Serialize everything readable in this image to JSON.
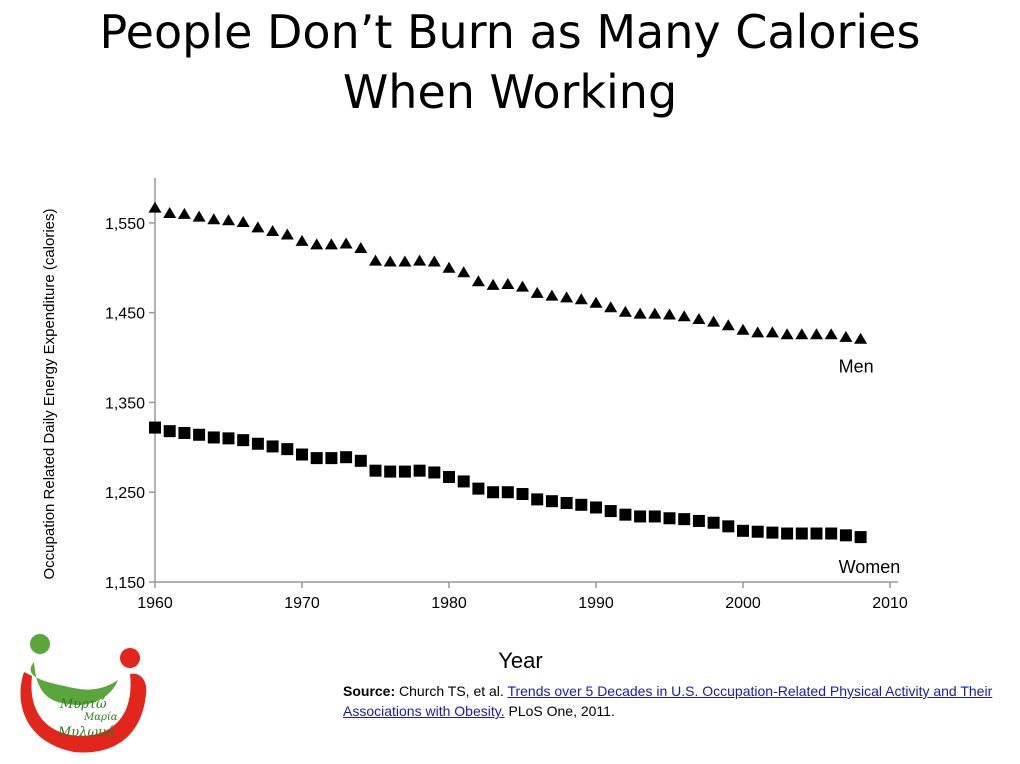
{
  "slide": {
    "title_line1": "People Don’t Burn as Many Calories",
    "title_line2": "When Working"
  },
  "source": {
    "label": "Source:",
    "authors": "Church TS, et al.",
    "link_text": "Trends over 5 Decades in U.S. Occupation-Related Physical Activity and Their Associations with Obesity.",
    "suffix": "PLoS One, 2011."
  },
  "logo": {
    "line1": "Μυρτώ",
    "line2": "Μαρία",
    "line3": "Μυλωνά",
    "colors": {
      "green": "#5aa63a",
      "red": "#e2261c"
    }
  },
  "chart_data": {
    "type": "scatter",
    "title": "",
    "xlabel": "Year",
    "ylabel": "Occupation Related Daily Energy Expenditure (calories)",
    "xlim": [
      1960,
      2010
    ],
    "ylim": [
      1150,
      1600
    ],
    "xticks": [
      1960,
      1970,
      1980,
      1990,
      2000,
      2010
    ],
    "yticks": [
      1150,
      1250,
      1350,
      1450,
      1550
    ],
    "xtick_labels": [
      "1960",
      "1970",
      "1980",
      "1990",
      "2000",
      "2010"
    ],
    "ytick_labels": [
      "1,150",
      "1,250",
      "1,350",
      "1,450",
      "1,550"
    ],
    "grid": false,
    "x": [
      1960,
      1961,
      1962,
      1963,
      1964,
      1965,
      1966,
      1967,
      1968,
      1969,
      1970,
      1971,
      1972,
      1973,
      1974,
      1975,
      1976,
      1977,
      1978,
      1979,
      1980,
      1981,
      1982,
      1983,
      1984,
      1985,
      1986,
      1987,
      1988,
      1989,
      1990,
      1991,
      1992,
      1993,
      1994,
      1995,
      1996,
      1997,
      1998,
      1999,
      2000,
      2001,
      2002,
      2003,
      2004,
      2005,
      2006,
      2007,
      2008
    ],
    "series": [
      {
        "name": "Men",
        "marker": "triangle",
        "color": "#000000",
        "values": [
          1567,
          1561,
          1560,
          1557,
          1554,
          1553,
          1551,
          1545,
          1541,
          1537,
          1530,
          1526,
          1526,
          1527,
          1522,
          1508,
          1507,
          1507,
          1508,
          1507,
          1500,
          1495,
          1485,
          1481,
          1482,
          1479,
          1472,
          1469,
          1467,
          1465,
          1461,
          1456,
          1451,
          1449,
          1449,
          1448,
          1446,
          1443,
          1440,
          1436,
          1431,
          1428,
          1428,
          1426,
          1426,
          1426,
          1426,
          1423,
          1421
        ]
      },
      {
        "name": "Women",
        "marker": "square",
        "color": "#000000",
        "values": [
          1322,
          1318,
          1316,
          1314,
          1311,
          1310,
          1308,
          1304,
          1301,
          1298,
          1292,
          1288,
          1288,
          1289,
          1285,
          1274,
          1273,
          1273,
          1274,
          1272,
          1267,
          1262,
          1254,
          1250,
          1250,
          1248,
          1242,
          1240,
          1238,
          1236,
          1233,
          1229,
          1225,
          1223,
          1223,
          1221,
          1220,
          1218,
          1216,
          1212,
          1207,
          1206,
          1205,
          1204,
          1204,
          1204,
          1204,
          1202,
          1200
        ]
      }
    ]
  }
}
